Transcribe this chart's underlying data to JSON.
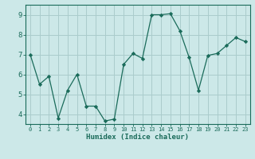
{
  "x": [
    0,
    1,
    2,
    3,
    4,
    5,
    6,
    7,
    8,
    9,
    10,
    11,
    12,
    13,
    14,
    15,
    16,
    17,
    18,
    19,
    20,
    21,
    22,
    23
  ],
  "y": [
    7.0,
    5.5,
    5.9,
    3.8,
    5.2,
    6.0,
    4.4,
    4.4,
    3.65,
    3.75,
    6.5,
    7.05,
    6.8,
    9.0,
    9.0,
    9.05,
    8.2,
    6.85,
    5.2,
    6.95,
    7.05,
    7.45,
    7.85,
    7.65
  ],
  "line_color": "#1a6b5a",
  "marker": "D",
  "marker_size": 2.2,
  "bg_color": "#cce8e8",
  "grid_color": "#aacccc",
  "xlabel": "Humidex (Indice chaleur)",
  "ylim": [
    3.5,
    9.5
  ],
  "xlim": [
    -0.5,
    23.5
  ],
  "yticks": [
    4,
    5,
    6,
    7,
    8,
    9
  ],
  "xticks": [
    0,
    1,
    2,
    3,
    4,
    5,
    6,
    7,
    8,
    9,
    10,
    11,
    12,
    13,
    14,
    15,
    16,
    17,
    18,
    19,
    20,
    21,
    22,
    23
  ],
  "tick_color": "#1a6b5a",
  "label_color": "#1a6b5a",
  "font_family": "monospace"
}
